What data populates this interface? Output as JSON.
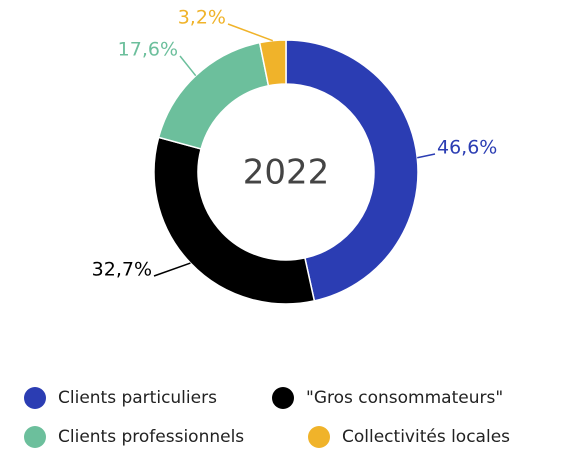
{
  "chart_data": {
    "type": "donut",
    "title": "2022",
    "categories": [
      "Clients particuliers",
      "\"Gros consommateurs\"",
      "Clients professionnels",
      "Collectivités locales"
    ],
    "values": [
      46.6,
      32.7,
      17.6,
      3.2
    ],
    "value_labels": [
      "46,6%",
      "32,7%",
      "17,6%",
      "3,2%"
    ],
    "colors": [
      "#2b3db3",
      "#000000",
      "#6cbf9c",
      "#f0b32a"
    ]
  }
}
